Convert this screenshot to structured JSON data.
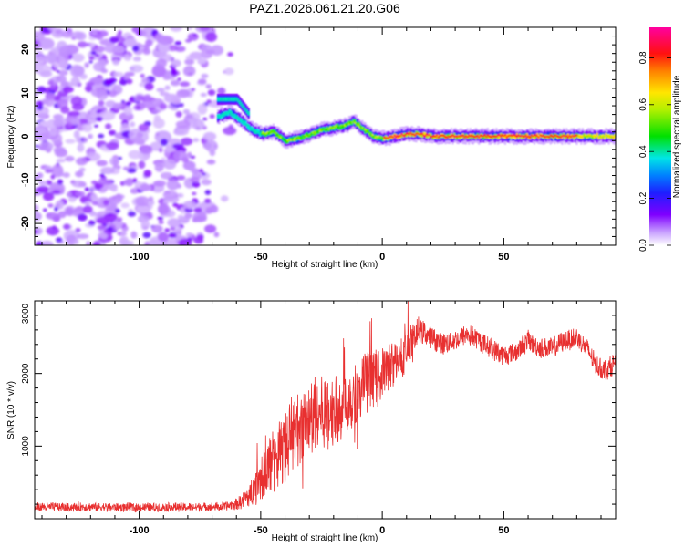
{
  "title": "PAZ1.2026.061.21.20.G06",
  "colors": {
    "snr_line": "#e83030",
    "frame": "#000000",
    "background": "#ffffff"
  },
  "chart_data": [
    {
      "type": "heatmap",
      "name": "spectrogram",
      "xlabel": "Height of straight line (km)",
      "ylabel": "Frequency (Hz)",
      "xlim": [
        -143,
        96
      ],
      "ylim": [
        -25,
        25
      ],
      "xticks": [
        "-100",
        "-50",
        "0",
        "50"
      ],
      "xtick_values": [
        -100,
        -50,
        0,
        50
      ],
      "yticks": [
        "20",
        "10",
        "0",
        "-10",
        "-20"
      ],
      "ytick_values": [
        20,
        10,
        0,
        -10,
        -20
      ],
      "grid": false,
      "colorbar": {
        "label": "Normalized spectral amplitude",
        "range": [
          0,
          0.93
        ],
        "ticks": [
          "0.0",
          "0.2",
          "0.4",
          "0.6",
          "0.8"
        ],
        "tick_values": [
          0.0,
          0.2,
          0.4,
          0.6,
          0.8
        ],
        "colormap": "rainbow (white-purple-blue-cyan-green-yellow-red-magenta)"
      },
      "noise_region": {
        "x_range": [
          -143,
          -60
        ],
        "y_range": [
          -25,
          25
        ],
        "amplitude": [
          0.0,
          0.2
        ]
      },
      "ridge": {
        "description": "dominant frequency track, amplitude increasing with height",
        "points": [
          {
            "x": -68,
            "y": 4.5
          },
          {
            "x": -63,
            "y": 5.5
          },
          {
            "x": -58,
            "y": 3.5
          },
          {
            "x": -55,
            "y": 2.0
          },
          {
            "x": -50,
            "y": 0.5
          },
          {
            "x": -45,
            "y": 1.0
          },
          {
            "x": -40,
            "y": -1.0
          },
          {
            "x": -35,
            "y": -0.5
          },
          {
            "x": -30,
            "y": 0.5
          },
          {
            "x": -25,
            "y": 1.5
          },
          {
            "x": -20,
            "y": 2.0
          },
          {
            "x": -15,
            "y": 2.5
          },
          {
            "x": -12,
            "y": 3.5
          },
          {
            "x": -8,
            "y": 1.5
          },
          {
            "x": -4,
            "y": 0.0
          },
          {
            "x": 0,
            "y": -0.5
          },
          {
            "x": 5,
            "y": 0.0
          },
          {
            "x": 10,
            "y": 0.5
          },
          {
            "x": 15,
            "y": 0.5
          },
          {
            "x": 20,
            "y": 0.0
          },
          {
            "x": 96,
            "y": 0.0
          }
        ],
        "upper_branch": [
          {
            "x": -68,
            "y": 8.5
          },
          {
            "x": -60,
            "y": 8.5
          },
          {
            "x": -55,
            "y": 5.0
          }
        ]
      }
    },
    {
      "type": "line",
      "name": "snr",
      "xlabel": "Height of straight line (km)",
      "ylabel": "SNR (10 * v/v)",
      "xlim": [
        -143,
        96
      ],
      "ylim": [
        0,
        3000
      ],
      "xticks": [
        "-100",
        "-50",
        "0",
        "50"
      ],
      "xtick_values": [
        -100,
        -50,
        0,
        50
      ],
      "yticks": [
        "3000",
        "2000",
        "1000"
      ],
      "ytick_values": [
        3000,
        2000,
        1000
      ],
      "grid": false,
      "series": [
        {
          "name": "SNR",
          "x": [
            -143,
            -120,
            -100,
            -80,
            -65,
            -60,
            -55,
            -50,
            -45,
            -40,
            -35,
            -30,
            -25,
            -20,
            -15,
            -10,
            -5,
            0,
            5,
            10,
            13,
            15,
            20,
            25,
            30,
            35,
            40,
            45,
            50,
            55,
            60,
            65,
            70,
            75,
            80,
            85,
            88,
            92,
            96
          ],
          "values": [
            160,
            160,
            155,
            160,
            165,
            200,
            300,
            550,
            800,
            1000,
            1250,
            1350,
            1450,
            1500,
            1600,
            1750,
            1900,
            2000,
            2150,
            2300,
            2500,
            2600,
            2500,
            2400,
            2450,
            2550,
            2450,
            2350,
            2250,
            2300,
            2450,
            2350,
            2350,
            2450,
            2500,
            2300,
            2100,
            2050,
            2150
          ],
          "noise_amplitude": [
            60,
            60,
            60,
            60,
            60,
            80,
            150,
            300,
            450,
            500,
            500,
            500,
            500,
            500,
            450,
            450,
            400,
            350,
            300,
            300,
            250,
            180,
            160,
            150,
            140,
            140,
            140,
            140,
            140,
            140,
            140,
            140,
            140,
            140,
            140,
            140,
            140,
            140,
            140
          ]
        }
      ]
    }
  ]
}
